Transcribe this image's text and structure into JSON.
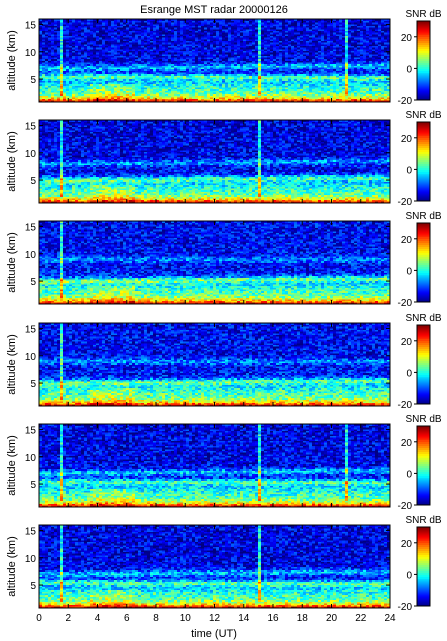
{
  "figure": {
    "title": "Esrange MST radar 20000126",
    "xlabel": "time (UT)",
    "ylabel": "altitude (km)",
    "colorbar_label": "SNR dB"
  },
  "chart_data": {
    "type": "heatmap",
    "title": "Esrange MST radar 20000126",
    "panel_count": 6,
    "x": {
      "label": "time (UT)",
      "unit": "UT hour",
      "range": [
        0,
        24
      ],
      "ticks": [
        0,
        2,
        4,
        6,
        8,
        10,
        12,
        14,
        16,
        18,
        20,
        22,
        24
      ]
    },
    "y": {
      "label": "altitude (km)",
      "unit": "km",
      "range": [
        0.8,
        16
      ],
      "ticks": [
        5,
        10,
        15
      ]
    },
    "colorbar": {
      "label": "SNR dB",
      "range": [
        -20,
        30
      ],
      "ticks": [
        -20,
        0,
        20
      ],
      "colormap": "jet"
    },
    "panels": [
      {
        "index": 1,
        "features": {
          "surface_snr_db": 28,
          "aloft_snr_db": -15,
          "layers": [
            {
              "start_alt_km": 5.5,
              "end_alt_km": 5.3,
              "snr_db": 9
            },
            {
              "start_alt_km": 7.0,
              "end_alt_km": 7.5,
              "snr_db": 4
            }
          ],
          "streaks_ut": [
            1.6,
            15.0,
            21.0
          ]
        }
      },
      {
        "index": 2,
        "features": {
          "surface_snr_db": 28,
          "aloft_snr_db": -15,
          "layers": [
            {
              "start_alt_km": 5.0,
              "end_alt_km": 5.5,
              "snr_db": 7
            },
            {
              "start_alt_km": 8.0,
              "end_alt_km": 8.5,
              "snr_db": 0
            }
          ],
          "streaks_ut": [
            1.6,
            15.0
          ]
        }
      },
      {
        "index": 3,
        "features": {
          "surface_snr_db": 28,
          "aloft_snr_db": -14,
          "layers": [
            {
              "start_alt_km": 5.0,
              "end_alt_km": 5.5,
              "snr_db": 10
            },
            {
              "start_alt_km": 9.0,
              "end_alt_km": 9.0,
              "snr_db": -2
            }
          ],
          "streaks_ut": [
            1.6
          ]
        }
      },
      {
        "index": 4,
        "features": {
          "surface_snr_db": 28,
          "aloft_snr_db": -14,
          "layers": [
            {
              "start_alt_km": 5.0,
              "end_alt_km": 5.5,
              "snr_db": 8
            },
            {
              "start_alt_km": 9.0,
              "end_alt_km": 9.0,
              "snr_db": -1
            }
          ],
          "streaks_ut": [
            1.6
          ]
        }
      },
      {
        "index": 5,
        "features": {
          "surface_snr_db": 28,
          "aloft_snr_db": -15,
          "layers": [
            {
              "start_alt_km": 5.5,
              "end_alt_km": 5.3,
              "snr_db": 9
            },
            {
              "start_alt_km": 7.0,
              "end_alt_km": 7.5,
              "snr_db": 4
            }
          ],
          "streaks_ut": [
            1.6,
            15.0,
            21.0
          ]
        }
      },
      {
        "index": 6,
        "features": {
          "surface_snr_db": 28,
          "aloft_snr_db": -15,
          "layers": [
            {
              "start_alt_km": 5.5,
              "end_alt_km": 5.3,
              "snr_db": 9
            },
            {
              "start_alt_km": 7.0,
              "end_alt_km": 7.5,
              "snr_db": 4
            }
          ],
          "streaks_ut": [
            1.6,
            15.0
          ]
        }
      }
    ]
  }
}
